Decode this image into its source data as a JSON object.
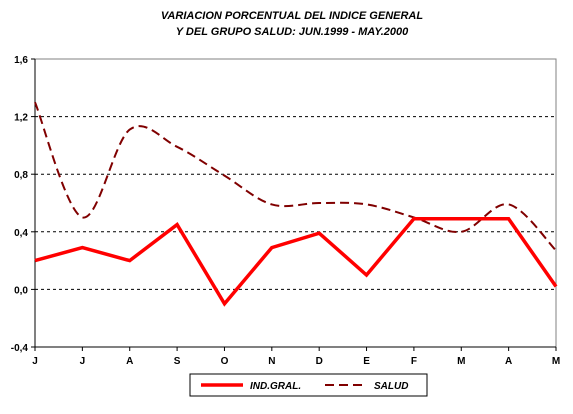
{
  "chart_data": {
    "type": "line",
    "title_lines": [
      "VARIACION PORCENTUAL DEL INDICE GENERAL",
      "Y DEL GRUPO SALUD: JUN.1999 - MAY.2000"
    ],
    "categories": [
      "J",
      "J",
      "A",
      "S",
      "O",
      "N",
      "D",
      "E",
      "F",
      "M",
      "A",
      "M"
    ],
    "series": [
      {
        "name": "IND.GRAL.",
        "values": [
          0.2,
          0.29,
          0.2,
          0.45,
          -0.1,
          0.29,
          0.39,
          0.1,
          0.49,
          0.49,
          0.49,
          0.02
        ],
        "color": "#ff0000",
        "style": "solid",
        "smooth": false
      },
      {
        "name": "SALUD",
        "values": [
          1.3,
          0.5,
          1.11,
          0.99,
          0.79,
          0.59,
          0.6,
          0.59,
          0.5,
          0.4,
          0.59,
          0.27
        ],
        "color": "#800000",
        "style": "dashed",
        "smooth": true
      }
    ],
    "ylim": [
      -0.4,
      1.6
    ],
    "yticks": [
      "-0,4",
      "0,0",
      "0,4",
      "0,8",
      "1,2",
      "1,6"
    ],
    "ytick_values": [
      -0.4,
      0.0,
      0.4,
      0.8,
      1.2,
      1.6
    ],
    "grid": "horizontal-dashed",
    "legend_position": "bottom"
  }
}
